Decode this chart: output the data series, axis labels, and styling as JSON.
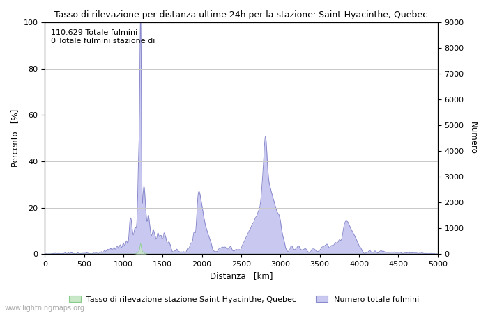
{
  "title": "Tasso di rilevazione per distanza ultime 24h per la stazione: Saint-Hyacinthe, Quebec",
  "xlabel": "Distanza   [km]",
  "ylabel_left": "Percento   [%]",
  "ylabel_right": "Numero",
  "annotation_line1": "110.629 Totale fulmini",
  "annotation_line2": "0 Totale fulmini stazione di",
  "xlim": [
    0,
    5000
  ],
  "ylim_left": [
    0,
    100
  ],
  "ylim_right": [
    0,
    9000
  ],
  "xticks": [
    0,
    500,
    1000,
    1500,
    2000,
    2500,
    3000,
    3500,
    4000,
    4500,
    5000
  ],
  "yticks_left": [
    0,
    20,
    40,
    60,
    80,
    100
  ],
  "yticks_right": [
    0,
    1000,
    2000,
    3000,
    4000,
    5000,
    6000,
    7000,
    8000,
    9000
  ],
  "legend_label_green": "Tasso di rilevazione stazione Saint-Hyacinthe, Quebec",
  "legend_label_blue": "Numero totale fulmini",
  "watermark": "www.lightningmaps.org",
  "bg_color": "#ffffff",
  "grid_color": "#c8c8c8",
  "fill_blue_color": "#c8c8f0",
  "fill_green_color": "#c8e8c8",
  "line_blue_color": "#8888cc",
  "line_green_color": "#88cc88"
}
